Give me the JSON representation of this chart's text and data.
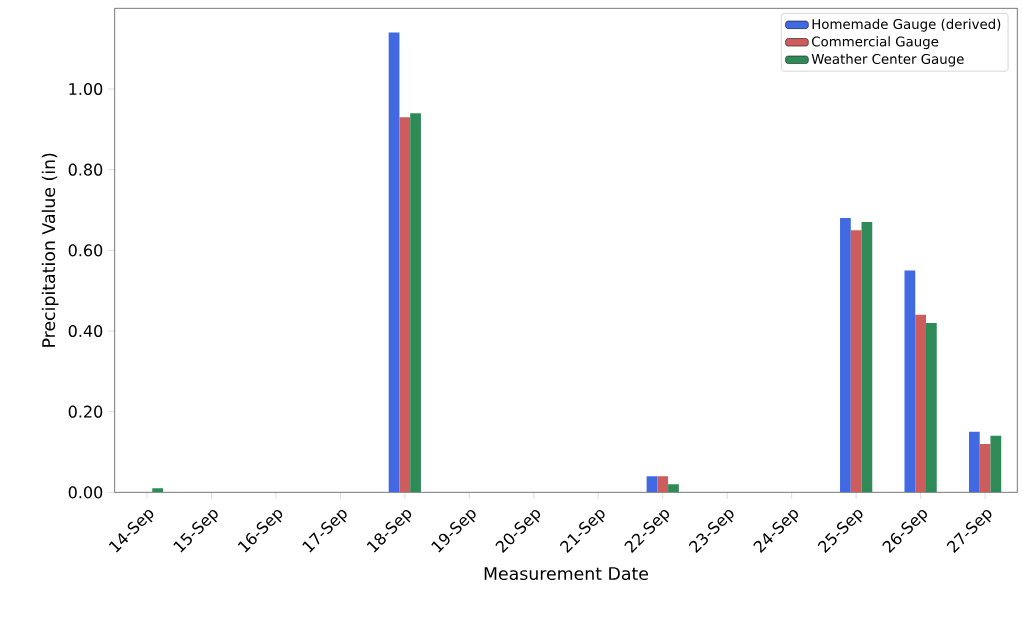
{
  "chart_data": {
    "type": "bar",
    "xlabel": "Measurement Date",
    "ylabel": "Precipitation Value (in)",
    "categories": [
      "14-Sep",
      "15-Sep",
      "16-Sep",
      "17-Sep",
      "18-Sep",
      "19-Sep",
      "20-Sep",
      "21-Sep",
      "22-Sep",
      "23-Sep",
      "24-Sep",
      "25-Sep",
      "26-Sep",
      "27-Sep"
    ],
    "series": [
      {
        "name": "Homemade Gauge (derived)",
        "color": "#4169e1",
        "values": [
          0,
          0,
          0,
          0,
          1.14,
          0,
          0,
          0,
          0.04,
          0,
          0,
          0.68,
          0.55,
          0.15
        ]
      },
      {
        "name": "Commercial Gauge",
        "color": "#cd5c5c",
        "values": [
          0,
          0,
          0,
          0,
          0.93,
          0,
          0,
          0,
          0.04,
          0,
          0,
          0.65,
          0.44,
          0.12
        ]
      },
      {
        "name": "Weather Center Gauge",
        "color": "#2e8b57",
        "values": [
          0.01,
          0,
          0,
          0,
          0.94,
          0,
          0,
          0,
          0.02,
          0,
          0,
          0.67,
          0.42,
          0.14
        ]
      }
    ],
    "ylim": [
      0,
      1.2
    ],
    "yticks": [
      {
        "value": 0,
        "label": "0.00"
      },
      {
        "value": 0.2,
        "label": "0.20"
      },
      {
        "value": 0.4,
        "label": "0.40"
      },
      {
        "value": 0.6,
        "label": "0.60"
      },
      {
        "value": 0.8,
        "label": "0.80"
      },
      {
        "value": 1.0,
        "label": "1.00"
      }
    ],
    "legend": "top right",
    "grid": false
  }
}
